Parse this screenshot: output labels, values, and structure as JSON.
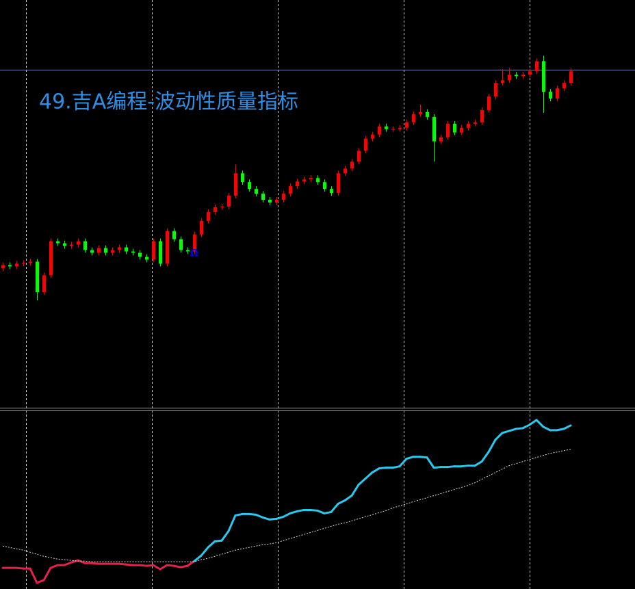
{
  "chart_data": [
    {
      "type": "candlestick",
      "title": "49.吉A编程-波动性质量指标",
      "up_color": "#ff0000",
      "down_color": "#00ff00",
      "ylim": [
        0,
        600
      ],
      "price_line": 497,
      "price_line_color": "#6f86a8",
      "annotation": {
        "text": "Ω",
        "x": 28,
        "y": 227,
        "color": "#0000ff"
      },
      "open": [
        205,
        210,
        208,
        212,
        213,
        215,
        170,
        195,
        245,
        242,
        238,
        240,
        245,
        232,
        228,
        235,
        228,
        232,
        236,
        230,
        228,
        222,
        218,
        245,
        212,
        260,
        248,
        232,
        230,
        255,
        275,
        288,
        295,
        296,
        312,
        345,
        332,
        322,
        315,
        306,
        302,
        306,
        315,
        326,
        333,
        336,
        338,
        332,
        322,
        316,
        345,
        352,
        362,
        378,
        396,
        402,
        414,
        410,
        410,
        412,
        420,
        432,
        435,
        428,
        392,
        398,
        418,
        405,
        412,
        418,
        420,
        438,
        458,
        478,
        482,
        490,
        488,
        490,
        495,
        510,
        465,
        455,
        470,
        478
      ],
      "high": [
        214,
        214,
        216,
        217,
        219,
        219,
        199,
        249,
        249,
        246,
        244,
        249,
        249,
        236,
        239,
        239,
        236,
        240,
        240,
        234,
        232,
        226,
        249,
        249,
        264,
        264,
        252,
        236,
        259,
        279,
        292,
        299,
        300,
        316,
        358,
        349,
        336,
        326,
        319,
        310,
        310,
        319,
        330,
        337,
        340,
        342,
        342,
        336,
        326,
        349,
        356,
        366,
        382,
        400,
        406,
        418,
        418,
        414,
        416,
        424,
        436,
        446,
        439,
        432,
        402,
        422,
        422,
        416,
        422,
        424,
        442,
        462,
        482,
        498,
        500,
        494,
        494,
        499,
        514,
        518,
        469,
        474,
        482,
        499
      ],
      "low": [
        201,
        204,
        204,
        208,
        209,
        158,
        166,
        191,
        238,
        234,
        234,
        236,
        228,
        224,
        224,
        224,
        224,
        228,
        226,
        224,
        218,
        214,
        214,
        208,
        208,
        244,
        228,
        226,
        226,
        251,
        271,
        284,
        291,
        292,
        308,
        328,
        318,
        311,
        302,
        298,
        298,
        302,
        311,
        322,
        329,
        332,
        328,
        318,
        312,
        312,
        341,
        348,
        358,
        374,
        392,
        398,
        406,
        406,
        406,
        408,
        416,
        428,
        424,
        362,
        388,
        394,
        401,
        401,
        408,
        414,
        416,
        434,
        454,
        474,
        478,
        484,
        484,
        486,
        491,
        434,
        451,
        451,
        466,
        474
      ],
      "close": [
        210,
        208,
        212,
        213,
        215,
        170,
        195,
        245,
        242,
        238,
        240,
        245,
        232,
        228,
        235,
        228,
        232,
        236,
        230,
        228,
        222,
        218,
        245,
        212,
        260,
        248,
        232,
        230,
        255,
        275,
        288,
        295,
        296,
        312,
        345,
        332,
        322,
        315,
        306,
        302,
        306,
        315,
        326,
        333,
        336,
        338,
        332,
        322,
        316,
        345,
        352,
        362,
        378,
        396,
        402,
        414,
        410,
        410,
        412,
        420,
        432,
        435,
        428,
        392,
        398,
        418,
        405,
        412,
        418,
        420,
        438,
        458,
        478,
        482,
        490,
        488,
        490,
        495,
        510,
        465,
        455,
        470,
        478,
        495
      ]
    },
    {
      "type": "line",
      "ylim": [
        0,
        261
      ],
      "series": [
        {
          "color": "#29c9f0",
          "below_color": "#e8204a",
          "style": "solid",
          "values": [
            31,
            31,
            31,
            30,
            30,
            9,
            13,
            31,
            35,
            35,
            39,
            42,
            38,
            38,
            37,
            37,
            37,
            37,
            36,
            35,
            35,
            34,
            35,
            29,
            35,
            34,
            32,
            34,
            41,
            49,
            61,
            70,
            71,
            85,
            108,
            110,
            110,
            109,
            105,
            102,
            103,
            106,
            111,
            114,
            116,
            116,
            115,
            111,
            113,
            125,
            130,
            137,
            153,
            162,
            171,
            177,
            178,
            178,
            180,
            191,
            194,
            194,
            193,
            178,
            179,
            179,
            180,
            180,
            181,
            181,
            187,
            201,
            219,
            229,
            232,
            235,
            236,
            241,
            248,
            238,
            233,
            233,
            235,
            240
          ]
        },
        {
          "color": "#dddddd",
          "style": "dotted",
          "values": [
            63,
            61,
            59,
            57,
            54,
            51,
            48,
            46,
            44,
            43,
            42,
            41,
            41,
            40,
            40,
            40,
            40,
            40,
            40,
            40,
            40,
            40,
            40,
            40,
            40,
            40,
            40,
            40,
            40,
            43,
            45,
            48,
            51,
            54,
            57,
            59,
            61,
            63,
            65,
            66,
            68,
            71,
            74,
            77,
            80,
            83,
            86,
            89,
            92,
            95,
            97,
            100,
            103,
            106,
            109,
            112,
            115,
            119,
            122,
            125,
            128,
            131,
            134,
            137,
            140,
            143,
            146,
            149,
            152,
            156,
            161,
            166,
            171,
            176,
            181,
            184,
            187,
            190,
            193,
            196,
            199,
            201,
            203,
            205
          ]
        }
      ]
    }
  ]
}
